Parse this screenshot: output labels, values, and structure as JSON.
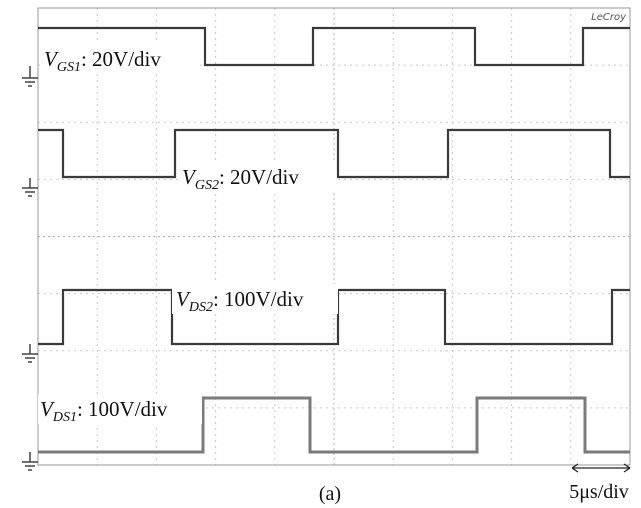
{
  "channels": [
    {
      "symbol": "V",
      "subscript": "GS1",
      "scale": ": 20V/div"
    },
    {
      "symbol": "V",
      "subscript": "GS2",
      "scale": ": 20V/div"
    },
    {
      "symbol": "V",
      "subscript": "DS2",
      "scale": ": 100V/div"
    },
    {
      "symbol": "V",
      "subscript": "DS1",
      "scale": ": 100V/div"
    }
  ],
  "logo": "LeCroy",
  "timebase": "5μs/div",
  "caption": "(a)"
}
